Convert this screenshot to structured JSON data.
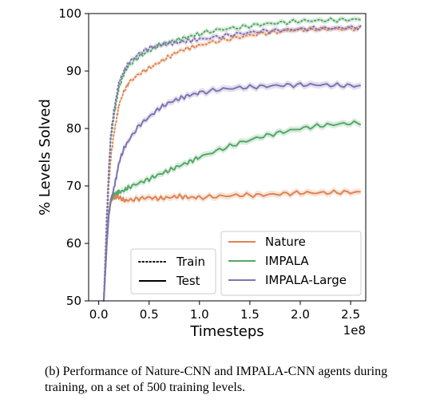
{
  "chart_data": {
    "type": "line",
    "xlabel": "Timesteps",
    "ylabel": "% Levels Solved",
    "x_offset_label": "1e8",
    "xlim": [
      -0.1,
      2.65
    ],
    "ylim": [
      50,
      100
    ],
    "x_ticks": [
      0.0,
      0.5,
      1.0,
      1.5,
      2.0,
      2.5
    ],
    "x_tick_labels": [
      "0.0",
      "0.5",
      "1.0",
      "1.5",
      "2.0",
      "2.5"
    ],
    "y_ticks": [
      50,
      60,
      70,
      80,
      90,
      100
    ],
    "y_tick_labels": [
      "50",
      "60",
      "70",
      "80",
      "90",
      "100"
    ],
    "grid": false,
    "style_legend": {
      "placement": "bottom-left",
      "entries": [
        {
          "label": "Train",
          "style": "dotted"
        },
        {
          "label": "Test",
          "style": "solid"
        }
      ]
    },
    "color_legend": {
      "placement": "bottom-right",
      "entries": [
        {
          "label": "Nature",
          "color": "#dd8452"
        },
        {
          "label": "IMPALA",
          "color": "#55a868"
        },
        {
          "label": "IMPALA-Large",
          "color": "#8172b3"
        }
      ]
    },
    "x": [
      0.05,
      0.08,
      0.1,
      0.12,
      0.15,
      0.18,
      0.2,
      0.25,
      0.3,
      0.4,
      0.5,
      0.6,
      0.7,
      0.8,
      0.9,
      1.0,
      1.2,
      1.4,
      1.6,
      1.8,
      2.0,
      2.2,
      2.4,
      2.6
    ],
    "series": [
      {
        "name": "Nature",
        "split": "train",
        "color": "#dd8452",
        "values": [
          50,
          62,
          70,
          75,
          79,
          82,
          84,
          86.5,
          88,
          89.5,
          90.5,
          91.5,
          92.5,
          93.5,
          94,
          94.5,
          95.3,
          95.9,
          96.5,
          96.9,
          97.2,
          97.3,
          97.3,
          97.5
        ]
      },
      {
        "name": "IMPALA",
        "split": "train",
        "color": "#55a868",
        "values": [
          50,
          64,
          72,
          78,
          82,
          85,
          87,
          89.5,
          91,
          92.5,
          93.5,
          94.5,
          95,
          95.5,
          96,
          96.5,
          97.2,
          97.6,
          98.1,
          98.4,
          98.7,
          98.8,
          98.9,
          99
        ]
      },
      {
        "name": "IMPALA-Large",
        "split": "train",
        "color": "#8172b3",
        "values": [
          50,
          65,
          73,
          79,
          83,
          86,
          88,
          90,
          91.5,
          93,
          94,
          94.5,
          94.8,
          95,
          95.3,
          95.5,
          96,
          96.5,
          96.9,
          97.1,
          97.3,
          97.4,
          97.5,
          97.6
        ]
      },
      {
        "name": "Nature",
        "split": "test",
        "color": "#dd8452",
        "values": [
          50,
          60,
          65,
          67.5,
          68,
          68.2,
          68.0,
          67.5,
          67.5,
          67.8,
          68.0,
          67.8,
          68.0,
          68.2,
          68.0,
          68.0,
          68.2,
          68.4,
          68.4,
          68.6,
          68.8,
          68.8,
          68.9,
          68.9
        ]
      },
      {
        "name": "IMPALA",
        "split": "test",
        "color": "#55a868",
        "values": [
          50,
          60,
          65,
          67.5,
          68.5,
          68.8,
          68.9,
          69.2,
          69.8,
          70.5,
          71.2,
          72.0,
          72.7,
          73.5,
          74.2,
          75,
          76.3,
          77.5,
          78.5,
          79.3,
          80,
          80.5,
          80.8,
          81
        ]
      },
      {
        "name": "IMPALA-Large",
        "split": "test",
        "color": "#8172b3",
        "values": [
          50,
          60,
          65,
          67.5,
          69.5,
          72,
          74,
          76.5,
          78,
          80.5,
          82,
          83.5,
          84.5,
          85.2,
          85.8,
          86.2,
          86.8,
          87.1,
          87.3,
          87.5,
          87.6,
          87.6,
          87.5,
          87.4
        ]
      }
    ]
  },
  "caption": "(b) Performance of Nature-CNN and IMPALA-CNN agents during training, on a set of 500 training levels."
}
